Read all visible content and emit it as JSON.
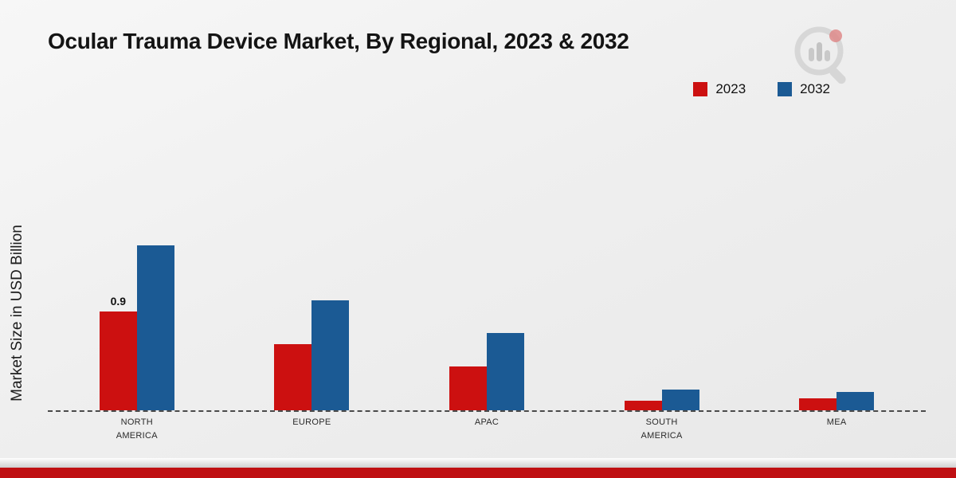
{
  "title": "Ocular Trauma Device Market, By Regional, 2023 & 2032",
  "ylabel": "Market Size in USD Billion",
  "brand": {
    "logo": "magnifier-bar-chart-logo"
  },
  "colors": {
    "series_2023": "#cc1010",
    "series_2032": "#1b5a94",
    "footer_strip": "#bf0f12"
  },
  "chart_data": {
    "type": "bar",
    "categories": [
      "NORTH AMERICA",
      "EUROPE",
      "APAC",
      "SOUTH AMERICA",
      "MEA"
    ],
    "series": [
      {
        "name": "2023",
        "color": "#cc1010",
        "values": [
          0.9,
          0.6,
          0.4,
          0.09,
          0.11
        ]
      },
      {
        "name": "2032",
        "color": "#1b5a94",
        "values": [
          1.5,
          1.0,
          0.7,
          0.19,
          0.17
        ]
      }
    ],
    "annotations": [
      {
        "series": "2023",
        "category": "NORTH AMERICA",
        "text": "0.9"
      }
    ],
    "title": "Ocular Trauma Device Market, By Regional, 2023 & 2032",
    "xlabel": "",
    "ylabel": "Market Size in USD Billion",
    "ylim": [
      0,
      1.9
    ],
    "grid": false,
    "legend_position": "top-right",
    "baseline": "dashed"
  }
}
